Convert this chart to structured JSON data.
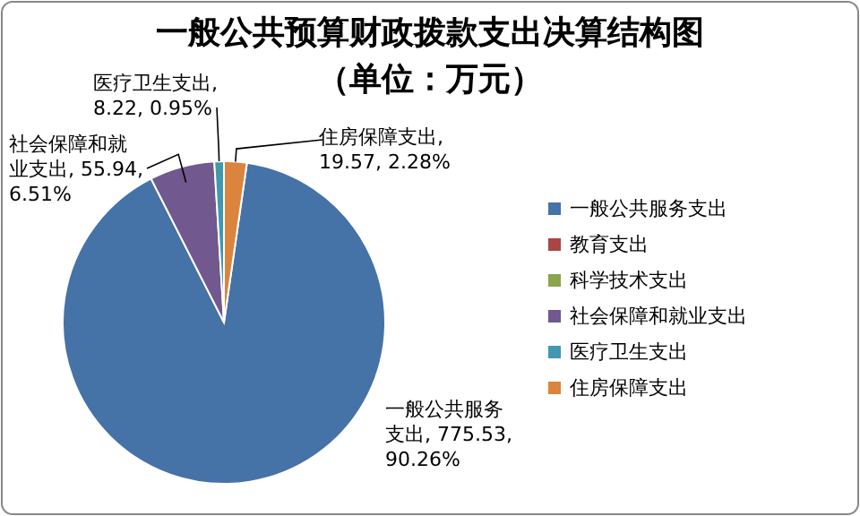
{
  "chart_data": {
    "type": "pie",
    "title": "一般公共预算财政拨款支出决算结构图",
    "subtitle": "（单位：万元）",
    "categories": [
      "一般公共服务支出",
      "教育支出",
      "科学技术支出",
      "社会保障和就业支出",
      "医疗卫生支出",
      "住房保障支出"
    ],
    "values": [
      775.53,
      0,
      0,
      55.94,
      8.22,
      19.57
    ],
    "colors": [
      "#4572a7",
      "#aa4643",
      "#89a54e",
      "#71588f",
      "#4198af",
      "#db843d"
    ],
    "value_labels": [
      "一般公共服务支出, 775.53, 90.26%",
      null,
      null,
      "社会保障和就业支出, 55.94, 6.51%",
      "医疗卫生支出, 8.22, 0.95%",
      "住房保障支出, 19.57, 2.28%"
    ],
    "legend": "right"
  }
}
